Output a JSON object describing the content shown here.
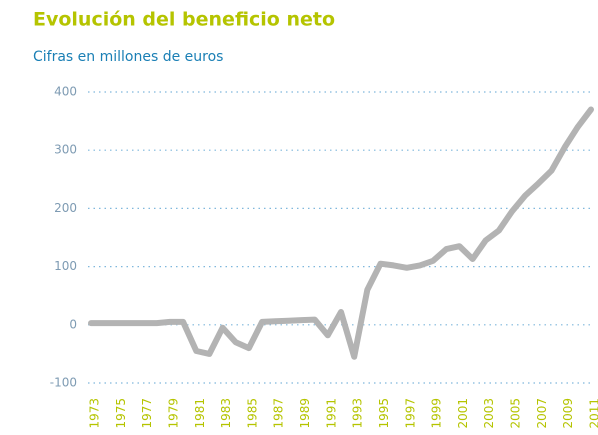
{
  "chart_data": {
    "type": "line",
    "title": "Evolución del beneficio neto",
    "subtitle": "Cifras en millones de euros",
    "categories": [
      "1973",
      null,
      "1975",
      null,
      "1977",
      null,
      "1979",
      null,
      "1981",
      null,
      "1983",
      null,
      "1985",
      null,
      "1987",
      null,
      "1989",
      null,
      "1991",
      null,
      "1993",
      null,
      "1995",
      null,
      "1997",
      null,
      "1999",
      null,
      "2001",
      null,
      "2003",
      null,
      "2005",
      null,
      "2007",
      null,
      "2009",
      null,
      "2011"
    ],
    "values": [
      3,
      3,
      3,
      3,
      3,
      3,
      5,
      5,
      -45,
      -50,
      -5,
      -30,
      -40,
      5,
      6,
      7,
      8,
      9,
      -18,
      22,
      -55,
      60,
      105,
      102,
      98,
      102,
      110,
      130,
      135,
      113,
      145,
      162,
      195,
      222,
      243,
      265,
      305,
      340,
      370
    ],
    "color": "#b3b3b3",
    "ylim": [
      -100,
      400
    ],
    "yticks": [
      -100,
      0,
      100,
      200,
      300,
      400
    ],
    "grid": true
  }
}
